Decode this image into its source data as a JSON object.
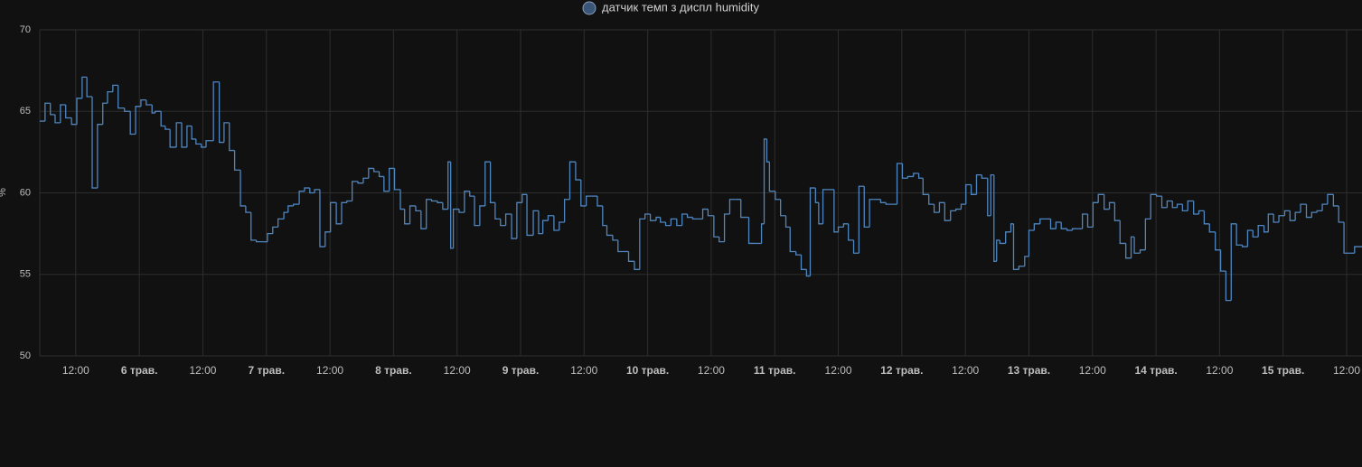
{
  "chart_data": {
    "type": "line",
    "step": true,
    "y_label": "%",
    "xlim": [
      5.2,
      254.9
    ],
    "ylim": [
      50,
      70
    ],
    "yticks": [
      50,
      55,
      60,
      65,
      70
    ],
    "grid": true,
    "xticks": [
      {
        "value": 12,
        "label": "12:00"
      },
      {
        "value": 24,
        "label": "6 трав."
      },
      {
        "value": 36,
        "label": "12:00"
      },
      {
        "value": 48,
        "label": "7 трав."
      },
      {
        "value": 60,
        "label": "12:00"
      },
      {
        "value": 72,
        "label": "8 трав."
      },
      {
        "value": 84,
        "label": "12:00"
      },
      {
        "value": 96,
        "label": "9 трав."
      },
      {
        "value": 108,
        "label": "12:00"
      },
      {
        "value": 120,
        "label": "10 трав."
      },
      {
        "value": 132,
        "label": "12:00"
      },
      {
        "value": 144,
        "label": "11 трав."
      },
      {
        "value": 156,
        "label": "12:00"
      },
      {
        "value": 168,
        "label": "12 трав."
      },
      {
        "value": 180,
        "label": "12:00"
      },
      {
        "value": 192,
        "label": "13 трав."
      },
      {
        "value": 204,
        "label": "12:00"
      },
      {
        "value": 216,
        "label": "14 трав."
      },
      {
        "value": 228,
        "label": "12:00"
      },
      {
        "value": 240,
        "label": "15 трав."
      },
      {
        "value": 252,
        "label": "12:00"
      }
    ],
    "series": [
      {
        "name": "датчик темп з диспл humidity",
        "color": "#4f86c0",
        "x": [
          5.2,
          6.2,
          7.2,
          8.1,
          9.1,
          10.1,
          11.2,
          12.2,
          13.2,
          14.1,
          15.1,
          16.1,
          17.1,
          18.0,
          19.0,
          20.0,
          21.2,
          22.3,
          23.3,
          24.3,
          25.3,
          26.4,
          27.0,
          28.1,
          28.9,
          29.8,
          31.0,
          32.0,
          33.0,
          33.9,
          34.7,
          35.7,
          36.6,
          38.0,
          39.1,
          40.0,
          41.0,
          42.0,
          43.1,
          44.1,
          45.1,
          46.1,
          47.2,
          48.2,
          49.2,
          50.2,
          51.3,
          52.1,
          53.1,
          54.2,
          55.2,
          56.2,
          57.1,
          58.1,
          59.1,
          60.1,
          61.2,
          62.2,
          63.2,
          64.2,
          65.3,
          66.3,
          67.3,
          68.3,
          69.3,
          70.2,
          71.2,
          72.2,
          73.3,
          74.1,
          75.1,
          76.2,
          77.2,
          78.2,
          79.2,
          80.3,
          81.3,
          82.3,
          82.8,
          83.3,
          84.4,
          85.4,
          86.4,
          87.3,
          88.3,
          89.3,
          90.3,
          91.2,
          92.2,
          93.2,
          94.3,
          95.3,
          96.3,
          97.2,
          98.4,
          99.4,
          100.2,
          101.2,
          102.3,
          103.3,
          104.3,
          105.3,
          106.4,
          107.4,
          108.4,
          109.4,
          110.5,
          111.5,
          112.3,
          113.4,
          114.4,
          115.4,
          116.4,
          117.5,
          118.5,
          119.5,
          120.5,
          121.6,
          122.4,
          123.4,
          124.4,
          125.5,
          126.5,
          127.5,
          128.5,
          129.6,
          130.4,
          131.4,
          132.5,
          133.5,
          134.5,
          135.5,
          136.6,
          137.6,
          138.6,
          139.1,
          140.3,
          141.5,
          142.0,
          142.5,
          143.0,
          144.1,
          145.1,
          146.1,
          146.9,
          148.0,
          149.0,
          150.0,
          150.7,
          151.7,
          152.3,
          153.1,
          154.1,
          155.2,
          156.0,
          157.0,
          157.9,
          158.9,
          159.9,
          160.9,
          161.9,
          163.0,
          164.0,
          165.0,
          166.1,
          167.1,
          168.1,
          169.1,
          170.2,
          171.2,
          172.0,
          173.1,
          174.1,
          175.1,
          176.1,
          177.2,
          178.2,
          179.2,
          180.1,
          181.1,
          182.1,
          183.1,
          184.2,
          184.8,
          185.4,
          185.9,
          186.5,
          187.6,
          188.6,
          189.1,
          190.1,
          191.2,
          192.0,
          193.0,
          194.1,
          195.1,
          196.1,
          197.1,
          198.1,
          199.2,
          200.2,
          201.0,
          202.1,
          203.1,
          204.1,
          205.1,
          206.2,
          207.2,
          208.2,
          209.2,
          210.3,
          211.3,
          211.9,
          213.0,
          214.0,
          215.0,
          216.1,
          217.1,
          218.1,
          219.1,
          220.0,
          221.0,
          222.0,
          223.1,
          224.1,
          225.1,
          226.1,
          227.2,
          228.2,
          229.2,
          230.2,
          231.2,
          232.3,
          233.3,
          234.3,
          235.3,
          236.4,
          237.2,
          238.2,
          239.2,
          240.3,
          241.3,
          242.3,
          243.3,
          244.4,
          245.4,
          246.4,
          247.4,
          248.4,
          249.5,
          250.5,
          251.5,
          253.5
        ],
        "values": [
          64.4,
          65.5,
          64.8,
          64.3,
          65.4,
          64.6,
          64.2,
          65.8,
          67.1,
          65.9,
          60.3,
          64.2,
          65.5,
          66.2,
          66.6,
          65.2,
          65.0,
          63.6,
          65.3,
          65.7,
          65.4,
          64.9,
          65.0,
          64.1,
          63.9,
          62.8,
          64.3,
          62.8,
          64.1,
          63.3,
          63.0,
          62.8,
          63.2,
          66.8,
          63.1,
          64.3,
          62.6,
          61.4,
          59.2,
          58.8,
          57.1,
          57.0,
          57.0,
          57.5,
          57.9,
          58.4,
          58.8,
          59.2,
          59.3,
          60.1,
          60.3,
          60.0,
          60.2,
          56.7,
          57.6,
          59.4,
          58.1,
          59.4,
          59.5,
          60.7,
          60.6,
          60.9,
          61.5,
          61.3,
          61.0,
          60.1,
          61.5,
          60.2,
          59.0,
          58.1,
          59.2,
          58.9,
          57.8,
          59.6,
          59.5,
          59.4,
          59.0,
          61.9,
          56.6,
          59.0,
          58.8,
          60.1,
          59.8,
          58.0,
          59.2,
          61.9,
          59.4,
          58.4,
          58.0,
          58.7,
          57.2,
          59.4,
          59.9,
          57.4,
          58.9,
          57.5,
          58.3,
          58.6,
          57.7,
          58.2,
          59.6,
          61.9,
          60.8,
          59.2,
          59.8,
          59.8,
          59.2,
          58.0,
          57.4,
          57.1,
          56.4,
          56.4,
          55.8,
          55.3,
          58.4,
          58.7,
          58.3,
          58.5,
          58.2,
          58.0,
          58.4,
          58.0,
          58.7,
          58.5,
          58.4,
          58.4,
          59.0,
          58.6,
          57.3,
          57.0,
          58.7,
          59.6,
          59.6,
          58.5,
          58.5,
          56.9,
          56.9,
          58.1,
          63.3,
          61.9,
          60.1,
          59.6,
          58.6,
          57.9,
          56.4,
          56.2,
          55.3,
          54.9,
          60.3,
          59.4,
          58.1,
          60.2,
          60.2,
          57.6,
          57.9,
          58.1,
          57.1,
          56.3,
          60.4,
          57.9,
          59.6,
          59.6,
          59.4,
          59.3,
          59.3,
          61.8,
          60.9,
          61.0,
          61.2,
          60.9,
          59.9,
          59.3,
          58.8,
          59.4,
          58.3,
          58.9,
          59.0,
          59.3,
          60.5,
          59.9,
          61.1,
          60.9,
          58.6,
          61.1,
          55.8,
          57.1,
          56.9,
          57.6,
          58.1,
          55.3,
          55.5,
          56.1,
          57.7,
          58.1,
          58.4,
          58.4,
          57.8,
          58.2,
          57.8,
          57.7,
          57.8,
          57.8,
          58.7,
          57.9,
          59.4,
          59.9,
          59.0,
          59.4,
          58.3,
          56.9,
          56.0,
          57.3,
          56.3,
          56.5,
          58.4,
          59.9,
          59.8,
          59.1,
          59.5,
          59.1,
          59.3,
          58.9,
          59.5,
          58.7,
          58.9,
          58.1,
          57.6,
          56.5,
          55.2,
          53.4,
          58.1,
          56.8,
          56.7,
          57.7,
          57.3,
          58.0,
          57.6,
          58.7,
          58.2,
          58.6,
          58.9,
          58.3,
          58.8,
          59.3,
          58.5,
          58.8,
          58.9,
          59.3,
          59.9,
          59.2,
          58.2,
          56.3,
          56.7
        ]
      }
    ]
  }
}
